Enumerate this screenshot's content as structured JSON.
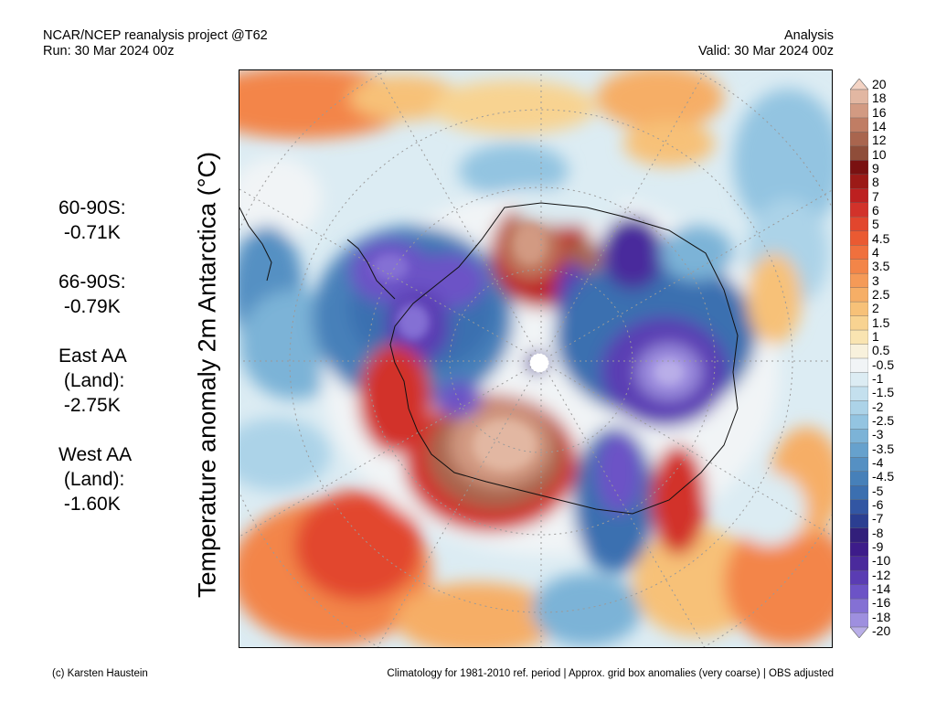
{
  "header": {
    "left_line1": "NCAR/NCEP reanalysis project @T62",
    "left_line2": "Run: 30 Mar 2024 00z",
    "right_line1": "Analysis",
    "right_line2": "Valid: 30 Mar 2024 00z"
  },
  "title": "Temperature anomaly 2m Antarctica (°C)",
  "stats": [
    {
      "lines": [
        "60-90S:",
        " -0.71K"
      ]
    },
    {
      "lines": [
        "66-90S:",
        " -0.79K"
      ]
    },
    {
      "lines": [
        "East AA",
        " (Land):",
        " -2.75K"
      ]
    },
    {
      "lines": [
        "West AA",
        " (Land):",
        " -1.60K"
      ]
    }
  ],
  "colorbar": {
    "labels": [
      "20",
      "18",
      "16",
      "14",
      "12",
      "10",
      "9",
      "8",
      "7",
      "6",
      "5",
      "4.5",
      "4",
      "3.5",
      "3",
      "2.5",
      "2",
      "1.5",
      "1",
      "0.5",
      "-0.5",
      "-1",
      "-1.5",
      "-2",
      "-2.5",
      "-3",
      "-3.5",
      "-4",
      "-4.5",
      "-5",
      "-6",
      "-7",
      "-8",
      "-9",
      "-10",
      "-12",
      "-14",
      "-16",
      "-18",
      "-20"
    ],
    "colors": [
      "#f3d3c4",
      "#e2b7a2",
      "#d29a82",
      "#c07d64",
      "#a9654e",
      "#8f4d39",
      "#7a1111",
      "#9c1a17",
      "#bd2020",
      "#d2322a",
      "#e2462d",
      "#ea5a32",
      "#f0703d",
      "#f38548",
      "#f59a57",
      "#f6ae66",
      "#f7c178",
      "#f8d391",
      "#f9e4b1",
      "#f8f1dc",
      "#f1f4f6",
      "#dcecf3",
      "#c4e0ee",
      "#acd3e8",
      "#93c4e1",
      "#7cb3d7",
      "#66a1cd",
      "#5590c3",
      "#4680b9",
      "#3b6fb0",
      "#3256a3",
      "#2b3e91",
      "#321f7b",
      "#3d1c8a",
      "#4a2a9c",
      "#5a3cb3",
      "#6c53c6",
      "#8470d4",
      "#9e8fdf",
      "#b9aee8"
    ]
  },
  "map": {
    "graticule_color": "#9a9a9a",
    "background": "#ffffff"
  },
  "footer": {
    "left": "(c) Karsten Haustein",
    "right": "Climatology for 1981-2010 ref. period | Approx. grid box anomalies (very coarse) | OBS adjusted"
  }
}
